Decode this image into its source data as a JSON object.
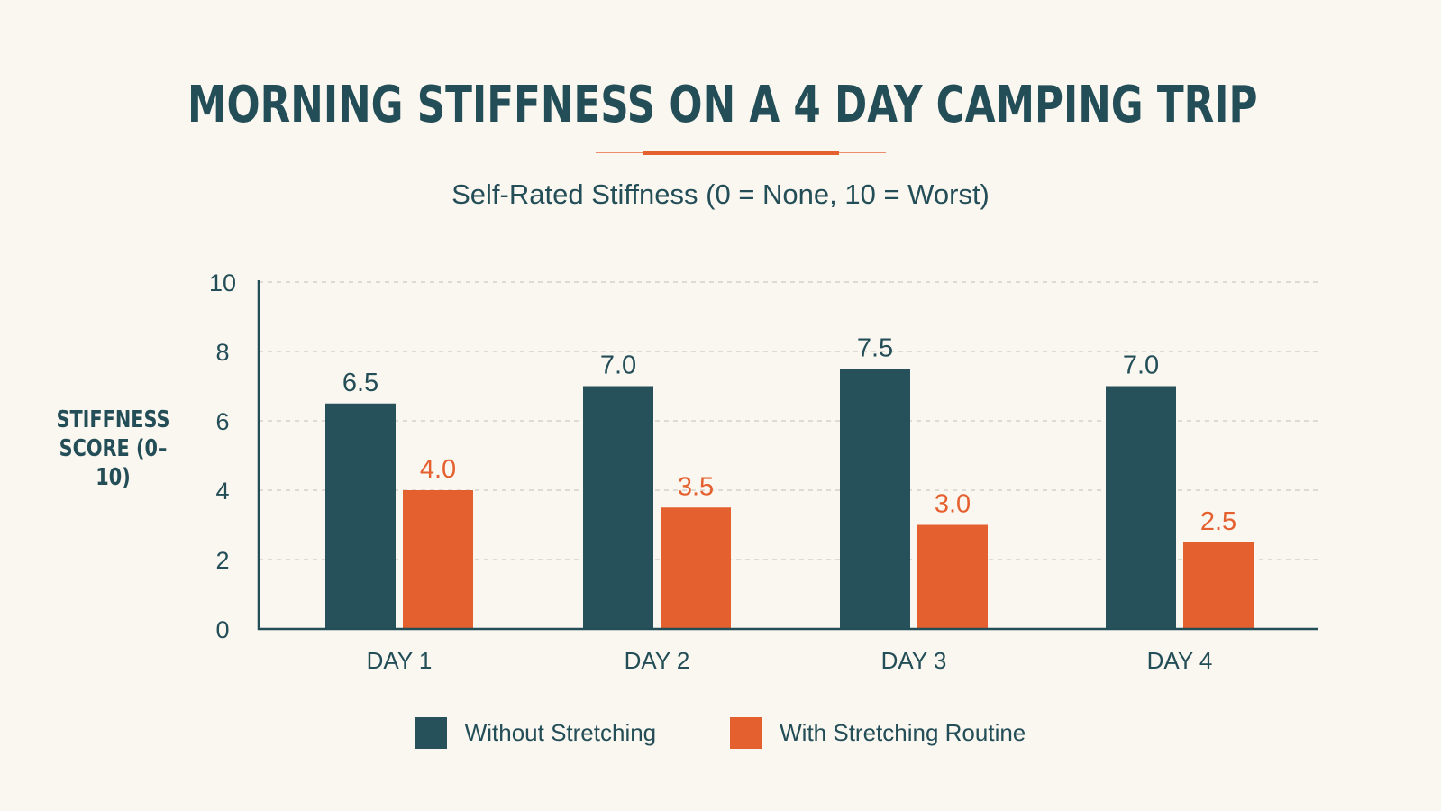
{
  "title": "MORNING STIFFNESS ON A 4 DAY CAMPING TRIP",
  "subtitle": "Self-Rated Stiffness (0 = None, 10 = Worst)",
  "colors": {
    "background": "#faf6f0",
    "without": "#26505a",
    "with": "#e5602f",
    "text": "#234e57",
    "grid": "#cfcac2"
  },
  "chart_data": {
    "type": "bar",
    "title": "MORNING STIFFNESS ON A 4 DAY CAMPING TRIP",
    "subtitle": "Self-Rated Stiffness (0 = None, 10 = Worst)",
    "xlabel": "",
    "ylabel": "STIFFNESS SCORE (0–10)",
    "ylim": [
      0,
      10
    ],
    "yticks": [
      "0",
      "2",
      "4",
      "6",
      "8",
      "10"
    ],
    "categories": [
      "DAY 1",
      "DAY 2",
      "DAY 3",
      "DAY 4"
    ],
    "series": [
      {
        "name": "Without Stretching",
        "values": [
          6.5,
          7.0,
          7.5,
          7.0
        ],
        "labels": [
          "6.5",
          "7.0",
          "7.5",
          "7.0"
        ],
        "color": "#26505a"
      },
      {
        "name": "With Stretching Routine",
        "values": [
          4.0,
          3.5,
          3.0,
          2.5
        ],
        "labels": [
          "4.0",
          "3.5",
          "3.0",
          "2.5"
        ],
        "color": "#e5602f"
      }
    ],
    "grid": true,
    "grid_style": "dashed horizontal",
    "legend_position": "bottom-center"
  }
}
